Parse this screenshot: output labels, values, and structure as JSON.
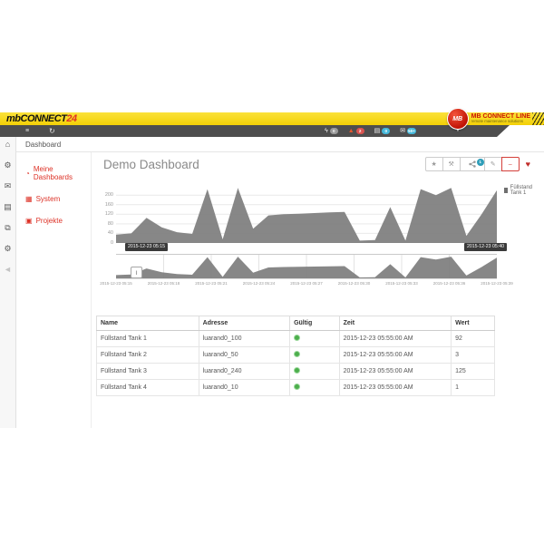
{
  "header": {
    "brand": {
      "prefix": "mbCONNECT",
      "suffix": "24"
    },
    "logo": {
      "circle_text": "MB",
      "title": "MB CONNECT LINE",
      "subtitle": "remote maintenance solutions"
    }
  },
  "toolbar": {
    "badges": {
      "alarms": "0",
      "warnings": "2",
      "tasks": "0",
      "messages": "50+"
    }
  },
  "breadcrumb": {
    "label": "Dashboard"
  },
  "sidebar": {
    "items": [
      {
        "label": "Meine Dashboards"
      },
      {
        "label": "System"
      },
      {
        "label": "Projekte"
      }
    ]
  },
  "main": {
    "title": "Demo Dashboard",
    "actions": {
      "share_badge": "1"
    }
  },
  "chart_data": {
    "type": "area",
    "series": [
      {
        "name": "Füllstand Tank 1",
        "color": "#7d7d7d",
        "values": [
          35,
          40,
          105,
          65,
          45,
          38,
          225,
          15,
          230,
          60,
          115,
          120,
          122,
          125,
          128,
          130,
          10,
          12,
          150,
          10,
          225,
          200,
          230,
          30,
          120,
          220
        ]
      }
    ],
    "x": [
      "05:15",
      "05:16",
      "05:17",
      "05:18",
      "05:19",
      "05:20",
      "05:21",
      "05:22",
      "05:23",
      "05:24",
      "05:25",
      "05:26",
      "05:27",
      "05:28",
      "05:29",
      "05:30",
      "05:31",
      "05:32",
      "05:33",
      "05:34",
      "05:35",
      "05:36",
      "05:37",
      "05:38",
      "05:39",
      "05:40"
    ],
    "x_labels": [
      "2015-12-23 05:15",
      "2015-12-23 05:18",
      "2015-12-23 05:21",
      "2015-12-23 05:24",
      "2015-12-23 05:27",
      "2015-12-23 05:30",
      "2015-12-23 05:33",
      "2015-12-23 05:36",
      "2015-12-23 05:39"
    ],
    "y_ticks": [
      200,
      160,
      120,
      80,
      40,
      0
    ],
    "ylim": [
      0,
      250
    ],
    "range_start": "2015-12-23 05:15",
    "range_end": "2015-12-23 05:40",
    "legend_position": "right",
    "grid": true
  },
  "table": {
    "headers": [
      "Name",
      "Adresse",
      "Gültig",
      "Zeit",
      "Wert"
    ],
    "rows": [
      {
        "name": "Füllstand Tank 1",
        "adresse": "luarand0_100",
        "gueltig": "valid",
        "zeit": "2015-12-23 05:55:00 AM",
        "wert": "92"
      },
      {
        "name": "Füllstand Tank 2",
        "adresse": "luarand0_50",
        "gueltig": "valid",
        "zeit": "2015-12-23 05:55:00 AM",
        "wert": "3"
      },
      {
        "name": "Füllstand Tank 3",
        "adresse": "luarand0_240",
        "gueltig": "valid",
        "zeit": "2015-12-23 05:55:00 AM",
        "wert": "125"
      },
      {
        "name": "Füllstand Tank 4",
        "adresse": "luarand0_10",
        "gueltig": "valid",
        "zeit": "2015-12-23 05:55:00 AM",
        "wert": "1"
      }
    ]
  },
  "colors": {
    "accent_yellow": "#f7d813",
    "toolbar_dark": "#4e4e4e",
    "brand_red": "#cc1407",
    "link_red": "#dd3227",
    "chart_gray": "#7d7d7d",
    "valid_green": "#4cae4c",
    "badge_red": "#d9534f",
    "badge_blue": "#46b8da",
    "badge_gray": "#9a9a9a"
  }
}
